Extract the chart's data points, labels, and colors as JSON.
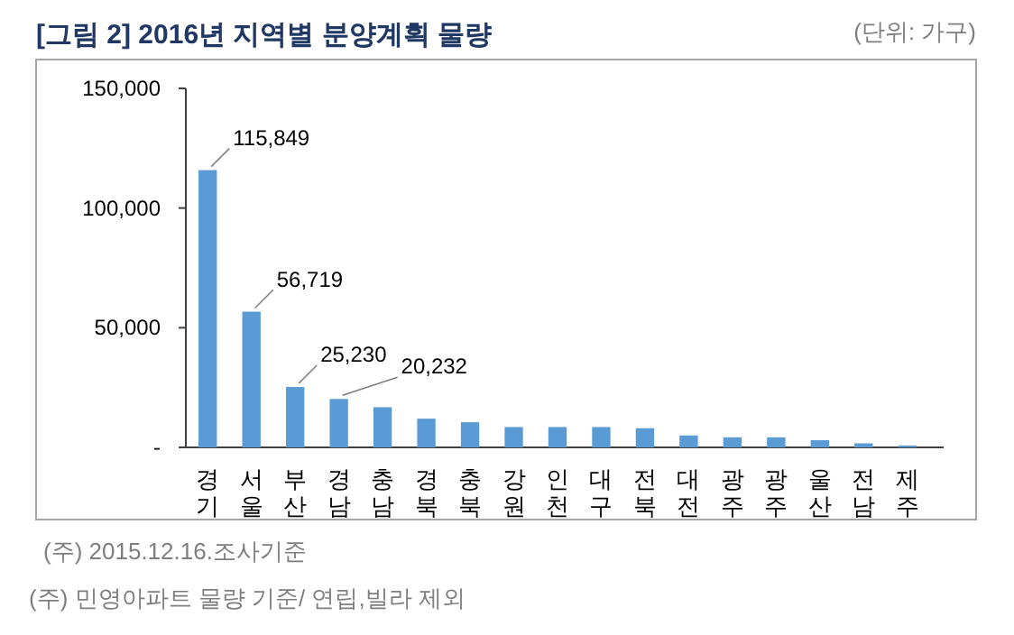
{
  "chart_data": {
    "type": "bar",
    "title": "[그림 2] 2016년 지역별 분양계획 물량",
    "categories": [
      "경기",
      "서울",
      "부산",
      "경남",
      "충남",
      "경북",
      "충북",
      "강원",
      "인천",
      "대구",
      "전북",
      "대전",
      "광주",
      "광주",
      "울산",
      "전남",
      "제주"
    ],
    "values": [
      115849,
      56719,
      25230,
      20232,
      16800,
      12000,
      10500,
      8500,
      8500,
      8500,
      8000,
      5000,
      4200,
      4200,
      3000,
      1700,
      800
    ],
    "value_labels": [
      "115,849",
      "56,719",
      "25,230",
      "20,232",
      null,
      null,
      null,
      null,
      null,
      null,
      null,
      null,
      null,
      null,
      null,
      null,
      null
    ],
    "color": "#5b9bd5",
    "ylim": [
      0,
      150000
    ],
    "yticks": [
      {
        "value": 0,
        "label": "-"
      },
      {
        "value": 50000,
        "label": "50,000"
      },
      {
        "value": 100000,
        "label": "100,000"
      },
      {
        "value": 150000,
        "label": "150,000"
      }
    ],
    "grid": false,
    "annotations": [
      "(단위: 가구)",
      "(주) 2015.12.16.조사기준",
      "(주) 민영아파트 물량 기준/ 연립,빌라 제외"
    ]
  }
}
